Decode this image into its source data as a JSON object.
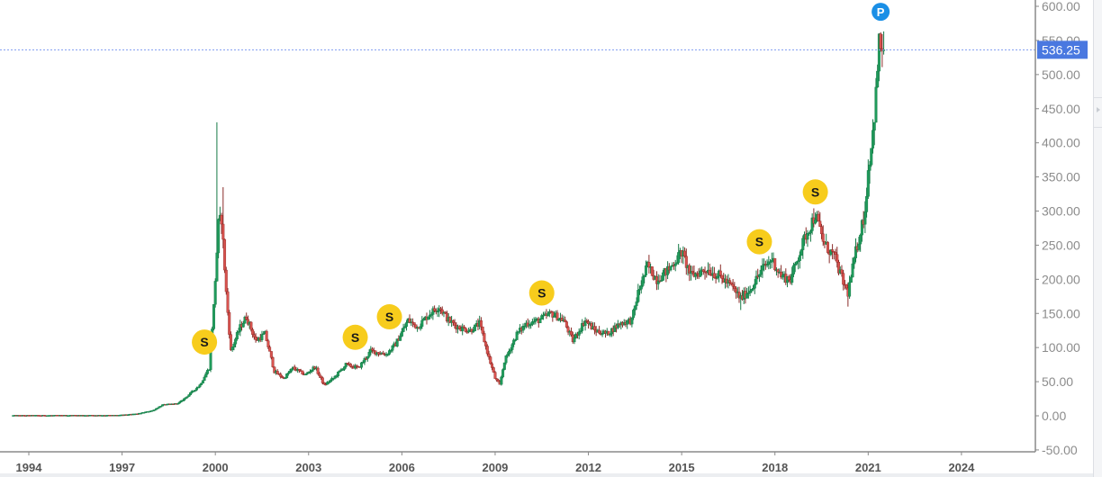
{
  "chart_data": {
    "type": "candlestick",
    "title": "",
    "xlabel": "",
    "ylabel": "",
    "x_ticks": [
      "1994",
      "1997",
      "2000",
      "2003",
      "2006",
      "2009",
      "2012",
      "2015",
      "2018",
      "2021",
      "2024"
    ],
    "y_ticks": [
      "600.00",
      "550.00",
      "500.00",
      "450.00",
      "400.00",
      "350.00",
      "300.00",
      "250.00",
      "200.00",
      "150.00",
      "100.00",
      "50.00",
      "0.00",
      "-50.00"
    ],
    "ylim": [
      -50,
      600
    ],
    "xlim": [
      1993.5,
      2026.4
    ],
    "grid": false,
    "last_price": "536.25",
    "last_price_line_color": "#5b7fe0",
    "up_color": "#1f9b5b",
    "down_color": "#d9534f",
    "markers": [
      {
        "label": "S",
        "year": 1999.65,
        "price": 108,
        "color": "#f7cc1c"
      },
      {
        "label": "S",
        "year": 2004.5,
        "price": 115,
        "color": "#f7cc1c"
      },
      {
        "label": "S",
        "year": 2005.6,
        "price": 145,
        "color": "#f7cc1c"
      },
      {
        "label": "S",
        "year": 2010.5,
        "price": 180,
        "color": "#f7cc1c"
      },
      {
        "label": "S",
        "year": 2017.5,
        "price": 255,
        "color": "#f7cc1c"
      },
      {
        "label": "S",
        "year": 2019.3,
        "price": 328,
        "color": "#f7cc1c"
      },
      {
        "label": "P",
        "year": 2021.4,
        "price": 592,
        "color": "#1a8fe6"
      }
    ],
    "price_path": [
      [
        1993.5,
        0.5
      ],
      [
        1996.9,
        0.8
      ],
      [
        1997.5,
        3
      ],
      [
        1998.0,
        8
      ],
      [
        1998.3,
        16
      ],
      [
        1998.8,
        18
      ],
      [
        1999.0,
        25
      ],
      [
        1999.5,
        45
      ],
      [
        1999.8,
        70
      ],
      [
        1999.95,
        160
      ],
      [
        2000.1,
        280
      ],
      [
        2000.2,
        290
      ],
      [
        2000.35,
        180
      ],
      [
        2000.5,
        95
      ],
      [
        2000.8,
        130
      ],
      [
        2001.0,
        145
      ],
      [
        2001.3,
        110
      ],
      [
        2001.6,
        120
      ],
      [
        2001.9,
        65
      ],
      [
        2002.2,
        55
      ],
      [
        2002.5,
        70
      ],
      [
        2002.9,
        60
      ],
      [
        2003.2,
        72
      ],
      [
        2003.5,
        45
      ],
      [
        2003.8,
        55
      ],
      [
        2004.2,
        75
      ],
      [
        2004.6,
        70
      ],
      [
        2005.0,
        95
      ],
      [
        2005.5,
        90
      ],
      [
        2005.8,
        105
      ],
      [
        2006.2,
        140
      ],
      [
        2006.5,
        130
      ],
      [
        2006.9,
        150
      ],
      [
        2007.2,
        160
      ],
      [
        2007.5,
        140
      ],
      [
        2007.8,
        130
      ],
      [
        2008.2,
        125
      ],
      [
        2008.5,
        135
      ],
      [
        2008.8,
        85
      ],
      [
        2009.0,
        55
      ],
      [
        2009.15,
        45
      ],
      [
        2009.3,
        80
      ],
      [
        2009.7,
        120
      ],
      [
        2010.0,
        135
      ],
      [
        2010.4,
        140
      ],
      [
        2010.8,
        150
      ],
      [
        2011.2,
        140
      ],
      [
        2011.5,
        110
      ],
      [
        2011.9,
        140
      ],
      [
        2012.2,
        125
      ],
      [
        2012.6,
        120
      ],
      [
        2013.0,
        135
      ],
      [
        2013.4,
        140
      ],
      [
        2013.6,
        180
      ],
      [
        2013.9,
        220
      ],
      [
        2014.2,
        200
      ],
      [
        2014.6,
        215
      ],
      [
        2015.0,
        240
      ],
      [
        2015.3,
        205
      ],
      [
        2015.8,
        215
      ],
      [
        2016.2,
        205
      ],
      [
        2016.6,
        190
      ],
      [
        2016.9,
        172
      ],
      [
        2017.2,
        185
      ],
      [
        2017.6,
        215
      ],
      [
        2017.9,
        230
      ],
      [
        2018.2,
        205
      ],
      [
        2018.5,
        200
      ],
      [
        2018.8,
        240
      ],
      [
        2019.0,
        265
      ],
      [
        2019.3,
        295
      ],
      [
        2019.6,
        250
      ],
      [
        2019.9,
        235
      ],
      [
        2020.2,
        195
      ],
      [
        2020.35,
        180
      ],
      [
        2020.6,
        240
      ],
      [
        2020.9,
        300
      ],
      [
        2021.0,
        360
      ],
      [
        2021.15,
        415
      ],
      [
        2021.25,
        470
      ],
      [
        2021.35,
        545
      ],
      [
        2021.5,
        536.25
      ]
    ]
  }
}
